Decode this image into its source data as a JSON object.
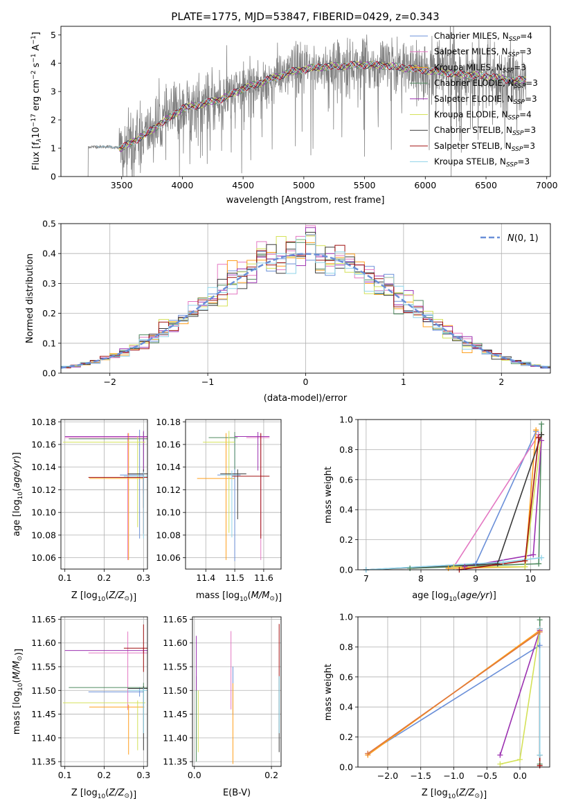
{
  "title": "PLATE=1775, MJD=53847, FIBERID=0429, z=0.343",
  "colors": {
    "Chabrier MILES": "#6a8fd8",
    "Salpeter MILES": "#e377c2",
    "Kroupa MILES": "#ff9f1c",
    "Chabrier ELODIE": "#4f8a5f",
    "Salpeter ELODIE": "#9b30b0",
    "Kroupa ELODIE": "#d4e157",
    "Chabrier STELIB": "#3a3a3a",
    "Salpeter STELIB": "#a01010",
    "Kroupa STELIB": "#8fd3e8",
    "data": "#808080",
    "normal": "#6a8fd8",
    "mass_weight_line2": "#e07b39"
  },
  "chart_data": [
    {
      "type": "line",
      "panel": "spectrum",
      "xlabel": "wavelength [Angstrom, rest frame]",
      "ylabel": "Flux [f_λ 10⁻¹⁷ erg cm⁻² s⁻¹ A⁻¹]",
      "xlim": [
        3000,
        7030
      ],
      "ylim": [
        0,
        5.3
      ],
      "xticks": [
        "3500",
        "4000",
        "4500",
        "5000",
        "5500",
        "6000",
        "6500",
        "7000"
      ],
      "yticks": [
        "0",
        "1",
        "2",
        "3",
        "4",
        "5"
      ],
      "legend_position": "top-right",
      "legend": [
        "Chabrier MILES, N_SSP=4",
        "Salpeter MILES, N_SSP=3",
        "Kroupa MILES, N_SSP=3",
        "Chabrier ELODIE, N_SSP=3",
        "Salpeter ELODIE, N_SSP=3",
        "Kroupa ELODIE, N_SSP=4",
        "Chabrier STELIB, N_SSP=3",
        "Salpeter STELIB, N_SSP=3",
        "Kroupa STELIB, N_SSP=3"
      ],
      "data_range": [
        3210,
        6830
      ],
      "continuum_knots": [
        [
          3210,
          1.05
        ],
        [
          3400,
          1.05
        ],
        [
          3500,
          1.0
        ],
        [
          3600,
          1.25
        ],
        [
          3700,
          1.5
        ],
        [
          3800,
          1.8
        ],
        [
          3900,
          2.1
        ],
        [
          4000,
          2.4
        ],
        [
          4100,
          2.5
        ],
        [
          4300,
          2.7
        ],
        [
          4500,
          3.1
        ],
        [
          4700,
          3.4
        ],
        [
          4900,
          3.7
        ],
        [
          5100,
          3.85
        ],
        [
          5300,
          3.9
        ],
        [
          5500,
          3.95
        ],
        [
          5700,
          3.9
        ],
        [
          5900,
          3.8
        ],
        [
          6100,
          3.7
        ],
        [
          6300,
          3.6
        ],
        [
          6500,
          3.55
        ],
        [
          6700,
          3.4
        ],
        [
          6830,
          3.4
        ]
      ]
    },
    {
      "type": "line",
      "panel": "residuals",
      "xlabel": "(data-model)/error",
      "ylabel": "Normed distribution",
      "xlim": [
        -2.5,
        2.5
      ],
      "ylim": [
        0,
        0.5
      ],
      "xticks": [
        -2,
        -1,
        0,
        1,
        2
      ],
      "yticks": [
        0.0,
        0.1,
        0.2,
        0.3,
        0.4,
        0.5
      ],
      "grid": true,
      "legend_position": "top-right",
      "legend_label": "N(0, 1)",
      "bin_width": 0.1
    },
    {
      "type": "scatter",
      "panel": "age-vs-Z",
      "xlabel": "Z [log10(Z/Z⊙)]",
      "ylabel": "age  [log10(age/yr)]",
      "xlim": [
        0.09,
        0.31
      ],
      "ylim": [
        10.05,
        10.182
      ],
      "xticks": [
        0.1,
        0.2,
        0.3
      ],
      "yticks": [
        10.06,
        10.08,
        10.1,
        10.12,
        10.14,
        10.16,
        10.18
      ],
      "grid": true,
      "points": [
        {
          "s": "Chabrier MILES",
          "x": 0.29,
          "xerr": [
            0.05,
            0.01
          ],
          "y": 10.133,
          "yerr": [
            0.056,
            0.04
          ]
        },
        {
          "s": "Salpeter MILES",
          "x": 0.26,
          "xerr": [
            0.16,
            0.05
          ],
          "y": 10.166,
          "yerr": [
            0.108,
            0.004
          ]
        },
        {
          "s": "Kroupa MILES",
          "x": 0.262,
          "xerr": [
            0.1,
            0.04
          ],
          "y": 10.13,
          "yerr": [
            0.072,
            0.04
          ]
        },
        {
          "s": "Chabrier ELODIE",
          "x": 0.3,
          "xerr": [
            0.19,
            0.01
          ],
          "y": 10.165,
          "yerr": [
            0.045,
            0.006
          ]
        },
        {
          "s": "Salpeter ELODIE",
          "x": 0.3,
          "xerr": [
            0.2,
            0.01
          ],
          "y": 10.167,
          "yerr": [
            0.05,
            0.005
          ]
        },
        {
          "s": "Kroupa ELODIE",
          "x": 0.285,
          "xerr": [
            0.19,
            0.02
          ],
          "y": 10.162,
          "yerr": [
            0.075,
            0.005
          ]
        },
        {
          "s": "Chabrier STELIB",
          "x": 0.3,
          "xerr": [
            0.04,
            0.01
          ],
          "y": 10.134,
          "yerr": [
            0.03,
            0.004
          ]
        },
        {
          "s": "Salpeter STELIB",
          "x": 0.3,
          "xerr": [
            0.14,
            0.01
          ],
          "y": 10.131,
          "yerr": [
            0.05,
            0.004
          ]
        },
        {
          "s": "Kroupa STELIB",
          "x": 0.3,
          "xerr": [
            0.05,
            0.01
          ],
          "y": 10.132,
          "yerr": [
            0.055,
            0.004
          ]
        }
      ]
    },
    {
      "type": "scatter",
      "panel": "age-vs-mass",
      "xlabel": "mass [log10(M/M⊙)]",
      "ylabel": "",
      "xlim": [
        11.33,
        11.66
      ],
      "ylim": [
        10.05,
        10.182
      ],
      "xticks": [
        11.4,
        11.5,
        11.6
      ],
      "yticks": [
        10.06,
        10.08,
        10.1,
        10.12,
        10.14,
        10.16,
        10.18
      ],
      "grid": true,
      "points": [
        {
          "s": "Chabrier MILES",
          "x": 11.5,
          "xerr": [
            0.06,
            0.02
          ],
          "y": 10.133,
          "yerr": [
            0.076,
            0.035
          ]
        },
        {
          "s": "Salpeter MILES",
          "x": 11.59,
          "xerr": [
            0.05,
            0.03
          ],
          "y": 10.166,
          "yerr": [
            0.108,
            0.004
          ]
        },
        {
          "s": "Kroupa MILES",
          "x": 11.47,
          "xerr": [
            0.1,
            0.03
          ],
          "y": 10.13,
          "yerr": [
            0.072,
            0.04
          ]
        },
        {
          "s": "Chabrier ELODIE",
          "x": 11.5,
          "xerr": [
            0.09,
            0.01
          ],
          "y": 10.166,
          "yerr": [
            0.028,
            0.005
          ]
        },
        {
          "s": "Salpeter ELODIE",
          "x": 11.58,
          "xerr": [
            0.08,
            0.04
          ],
          "y": 10.167,
          "yerr": [
            0.03,
            0.004
          ]
        },
        {
          "s": "Kroupa ELODIE",
          "x": 11.48,
          "xerr": [
            0.09,
            0.02
          ],
          "y": 10.162,
          "yerr": [
            0.08,
            0.01
          ]
        },
        {
          "s": "Chabrier STELIB",
          "x": 11.51,
          "xerr": [
            0.06,
            0.03
          ],
          "y": 10.134,
          "yerr": [
            0.04,
            0.004
          ]
        },
        {
          "s": "Salpeter STELIB",
          "x": 11.59,
          "xerr": [
            0.1,
            0.03
          ],
          "y": 10.132,
          "yerr": [
            0.055,
            0.038
          ]
        },
        {
          "s": "Kroupa STELIB",
          "x": 11.49,
          "xerr": [
            0.04,
            0.02
          ],
          "y": 10.133,
          "yerr": [
            0.055,
            0.004
          ]
        }
      ]
    },
    {
      "type": "line",
      "panel": "massweight-vs-age",
      "xlabel": "age  [log10(age/yr)]",
      "ylabel": "mass weight",
      "xlim": [
        6.85,
        10.35
      ],
      "ylim": [
        0,
        1.0
      ],
      "xticks": [
        7,
        8,
        9,
        10
      ],
      "yticks": [
        0.0,
        0.2,
        0.4,
        0.6,
        0.8,
        1.0
      ],
      "grid": true,
      "series": [
        {
          "s": "Chabrier MILES",
          "x": [
            7.0,
            9.0,
            10.1
          ],
          "y": [
            0.0,
            0.04,
            0.92
          ]
        },
        {
          "s": "Salpeter MILES",
          "x": [
            8.6,
            10.15
          ],
          "y": [
            0.02,
            0.9
          ]
        },
        {
          "s": "Kroupa MILES",
          "x": [
            8.5,
            9.9,
            10.1
          ],
          "y": [
            0.01,
            0.02,
            0.93
          ]
        },
        {
          "s": "Chabrier ELODIE",
          "x": [
            7.8,
            10.15,
            10.2
          ],
          "y": [
            0.01,
            0.04,
            0.97
          ]
        },
        {
          "s": "Salpeter ELODIE",
          "x": [
            8.8,
            10.05,
            10.2
          ],
          "y": [
            0.02,
            0.1,
            0.86
          ]
        },
        {
          "s": "Kroupa ELODIE",
          "x": [
            8.6,
            9.9,
            10.2
          ],
          "y": [
            0.02,
            0.02,
            0.9
          ]
        },
        {
          "s": "Chabrier STELIB",
          "x": [
            7.0,
            9.4,
            10.2
          ],
          "y": [
            0.0,
            0.04,
            0.9
          ]
        },
        {
          "s": "Salpeter STELIB",
          "x": [
            8.7,
            9.9,
            10.15
          ],
          "y": [
            0.0,
            0.06,
            0.88
          ]
        },
        {
          "s": "Kroupa STELIB",
          "x": [
            7.0,
            9.5,
            10.2
          ],
          "y": [
            0.0,
            0.05,
            0.08
          ]
        }
      ]
    },
    {
      "type": "scatter",
      "panel": "mass-vs-Z",
      "xlabel": "Z [log10(Z/Z⊙)]",
      "ylabel": "mass [log10(M/M⊙)]",
      "xlim": [
        0.09,
        0.31
      ],
      "ylim": [
        11.34,
        11.655
      ],
      "xticks": [
        0.1,
        0.2,
        0.3
      ],
      "yticks": [
        11.35,
        11.4,
        11.45,
        11.5,
        11.55,
        11.6,
        11.65
      ],
      "grid": true,
      "points": [
        {
          "s": "Chabrier MILES",
          "x": 0.29,
          "xerr": [
            0.13,
            0.01
          ],
          "y": 11.497,
          "yerr": [
            0.01,
            0.01
          ]
        },
        {
          "s": "Salpeter MILES",
          "x": 0.26,
          "xerr": [
            0.1,
            0.05
          ],
          "y": 11.579,
          "yerr": [
            0.12,
            0.045
          ]
        },
        {
          "s": "Kroupa MILES",
          "x": 0.262,
          "xerr": [
            0.1,
            0.04
          ],
          "y": 11.465,
          "yerr": [
            0.1,
            0.005
          ]
        },
        {
          "s": "Chabrier ELODIE",
          "x": 0.3,
          "xerr": [
            0.19,
            0.01
          ],
          "y": 11.506,
          "yerr": [
            0.01,
            0.01
          ]
        },
        {
          "s": "Salpeter ELODIE",
          "x": 0.3,
          "xerr": [
            0.2,
            0.01
          ],
          "y": 11.584,
          "yerr": [
            0.005,
            0.005
          ]
        },
        {
          "s": "Kroupa ELODIE",
          "x": 0.285,
          "xerr": [
            0.19,
            0.02
          ],
          "y": 11.474,
          "yerr": [
            0.1,
            0.005
          ]
        },
        {
          "s": "Chabrier STELIB",
          "x": 0.3,
          "xerr": [
            0.04,
            0.01
          ],
          "y": 11.504,
          "yerr": [
            0.13,
            0.005
          ]
        },
        {
          "s": "Salpeter STELIB",
          "x": 0.3,
          "xerr": [
            0.05,
            0.01
          ],
          "y": 11.589,
          "yerr": [
            0.05,
            0.05
          ]
        },
        {
          "s": "Kroupa STELIB",
          "x": 0.3,
          "xerr": [
            0.04,
            0.01
          ],
          "y": 11.5,
          "yerr": [
            0.09,
            0.005
          ]
        }
      ]
    },
    {
      "type": "scatter",
      "panel": "mass-vs-EBV",
      "xlabel": "E(B-V)",
      "ylabel": "",
      "xlim": [
        -0.005,
        0.225
      ],
      "ylim": [
        11.34,
        11.655
      ],
      "xticks": [
        0.0,
        0.2
      ],
      "yticks": [
        11.35,
        11.4,
        11.45,
        11.5,
        11.55,
        11.6,
        11.65
      ],
      "grid": true,
      "points": [
        {
          "s": "Chabrier MILES",
          "x": 0.1,
          "y": 11.5,
          "yerr": [
            0.05,
            0.05
          ]
        },
        {
          "s": "Salpeter MILES",
          "x": 0.095,
          "y": 11.58,
          "yerr": [
            0.12,
            0.045
          ]
        },
        {
          "s": "Kroupa MILES",
          "x": 0.1,
          "y": 11.465,
          "yerr": [
            0.12,
            0.05
          ]
        },
        {
          "s": "Chabrier ELODIE",
          "x": 0.005,
          "y": 11.5,
          "yerr": [
            0.15,
            0.03
          ]
        },
        {
          "s": "Salpeter ELODIE",
          "x": 0.005,
          "y": 11.58,
          "yerr": [
            0.08,
            0.035
          ]
        },
        {
          "s": "Kroupa ELODIE",
          "x": 0.01,
          "y": 11.47,
          "yerr": [
            0.1,
            0.03
          ]
        },
        {
          "s": "Chabrier STELIB",
          "x": 0.22,
          "y": 11.5,
          "yerr": [
            0.13,
            0.03
          ]
        },
        {
          "s": "Salpeter STELIB",
          "x": 0.22,
          "y": 11.59,
          "yerr": [
            0.06,
            0.05
          ]
        },
        {
          "s": "Kroupa STELIB",
          "x": 0.22,
          "y": 11.47,
          "yerr": [
            0.06,
            0.06
          ]
        }
      ]
    },
    {
      "type": "line",
      "panel": "massweight-vs-Z",
      "xlabel": "Z [log10(Z/Z⊙)]",
      "ylabel": "mass weight",
      "xlim": [
        -2.45,
        0.45
      ],
      "ylim": [
        0,
        1.0
      ],
      "xticks": [
        -2.0,
        -1.5,
        -1.0,
        -0.5,
        0.0
      ],
      "yticks": [
        0.0,
        0.2,
        0.4,
        0.6,
        0.8,
        1.0
      ],
      "grid": true,
      "series": [
        {
          "s": "Chabrier MILES",
          "x": [
            -2.3,
            0.3
          ],
          "y": [
            0.09,
            0.81
          ]
        },
        {
          "s": "Salpeter MILES",
          "x": [
            -2.3,
            0.3
          ],
          "y": [
            0.09,
            0.9
          ]
        },
        {
          "s": "Kroupa MILES",
          "x": [
            -2.3,
            0.3
          ],
          "y": [
            0.08,
            0.91
          ]
        },
        {
          "s": "Chabrier ELODIE",
          "x": [
            0.3,
            0.3
          ],
          "y": [
            0.02,
            0.98
          ]
        },
        {
          "s": "Salpeter ELODIE",
          "x": [
            -0.3,
            0.3
          ],
          "y": [
            0.08,
            0.91
          ]
        },
        {
          "s": "Kroupa ELODIE",
          "x": [
            -0.3,
            0.0,
            0.3
          ],
          "y": [
            0.02,
            0.05,
            0.92
          ]
        },
        {
          "s": "Chabrier STELIB",
          "x": [
            0.3,
            0.3
          ],
          "y": [
            0.08,
            0.92
          ]
        },
        {
          "s": "Salpeter STELIB",
          "x": [
            0.3,
            0.3
          ],
          "y": [
            0.01,
            0.92
          ]
        },
        {
          "s": "Kroupa STELIB",
          "x": [
            0.3,
            0.3
          ],
          "y": [
            0.08,
            0.92
          ]
        }
      ],
      "extra": {
        "s": "mass_weight_line2",
        "x": [
          -2.3,
          0.3
        ],
        "y": [
          0.09,
          0.9
        ]
      }
    }
  ]
}
